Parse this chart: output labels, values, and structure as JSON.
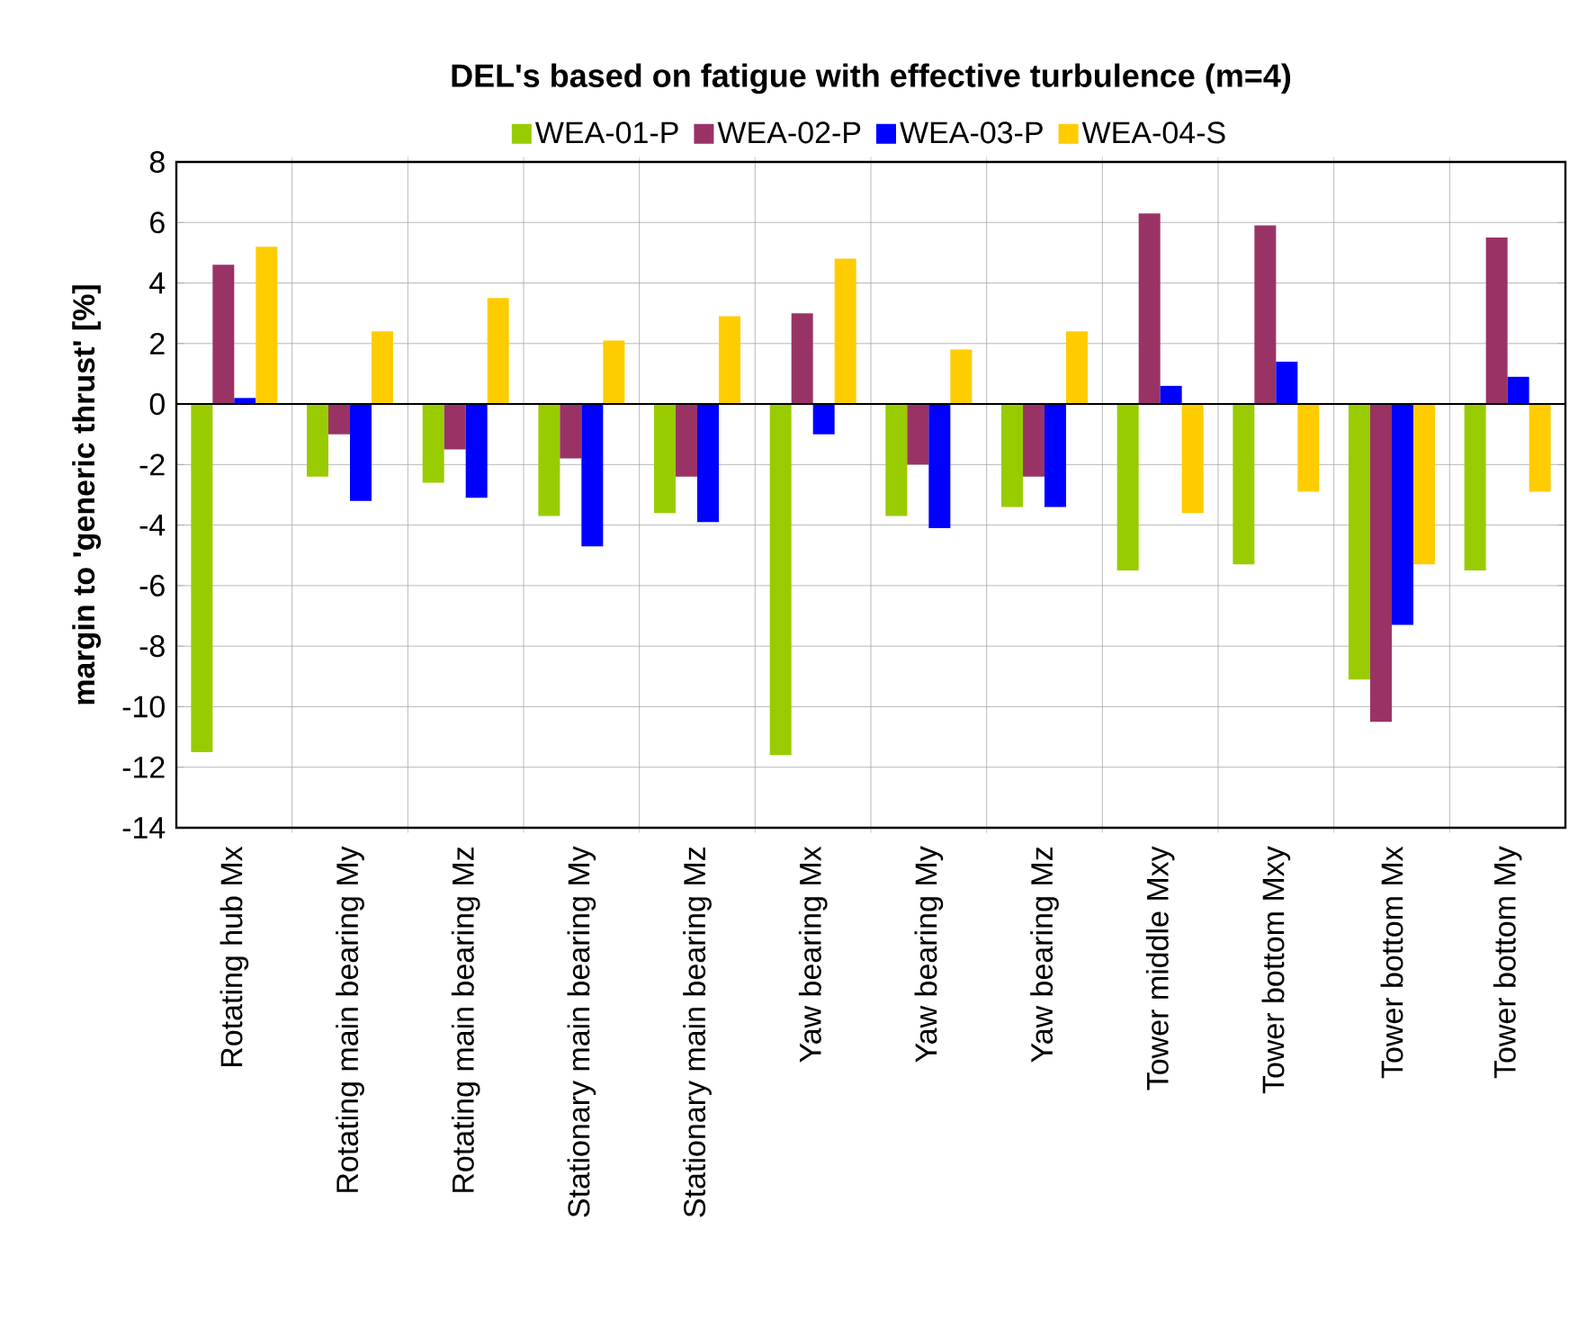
{
  "chart_data": {
    "type": "bar",
    "title": "DEL's based on fatigue with effective turbulence (m=4)",
    "ylabel": "margin to 'generic thrust' [%]",
    "categories": [
      "Rotating hub Mx",
      "Rotating main bearing My",
      "Rotating main bearing Mz",
      "Stationary main bearing My",
      "Stationary main bearing Mz",
      "Yaw bearing Mx",
      "Yaw bearing My",
      "Yaw bearing Mz",
      "Tower middle Mxy",
      "Tower bottom Mxy",
      "Tower bottom Mx",
      "Tower bottom My"
    ],
    "series": [
      {
        "name": "WEA-01-P",
        "color": "#99cc00",
        "values": [
          -11.5,
          -2.4,
          -2.6,
          -3.7,
          -3.6,
          -11.6,
          -3.7,
          -3.4,
          -5.5,
          -5.3,
          -9.1,
          -5.5
        ]
      },
      {
        "name": "WEA-02-P",
        "color": "#993366",
        "values": [
          4.6,
          -1.0,
          -1.5,
          -1.8,
          -2.4,
          3.0,
          -2.0,
          -2.4,
          6.3,
          5.9,
          -10.5,
          5.5
        ]
      },
      {
        "name": "WEA-03-P",
        "color": "#0000ff",
        "values": [
          0.2,
          -3.2,
          -3.1,
          -4.7,
          -3.9,
          -1.0,
          -4.1,
          -3.4,
          0.6,
          1.4,
          -7.3,
          0.9
        ]
      },
      {
        "name": "WEA-04-S",
        "color": "#ffcc00",
        "values": [
          5.2,
          2.4,
          3.5,
          2.1,
          2.9,
          4.8,
          1.8,
          2.4,
          -3.6,
          -2.9,
          -5.3,
          -2.9
        ]
      }
    ],
    "ylim": [
      -14,
      8
    ],
    "yticks": [
      -14,
      -12,
      -10,
      -8,
      -6,
      -4,
      -2,
      0,
      2,
      4,
      6,
      8
    ],
    "grid": true,
    "legend": "top"
  }
}
